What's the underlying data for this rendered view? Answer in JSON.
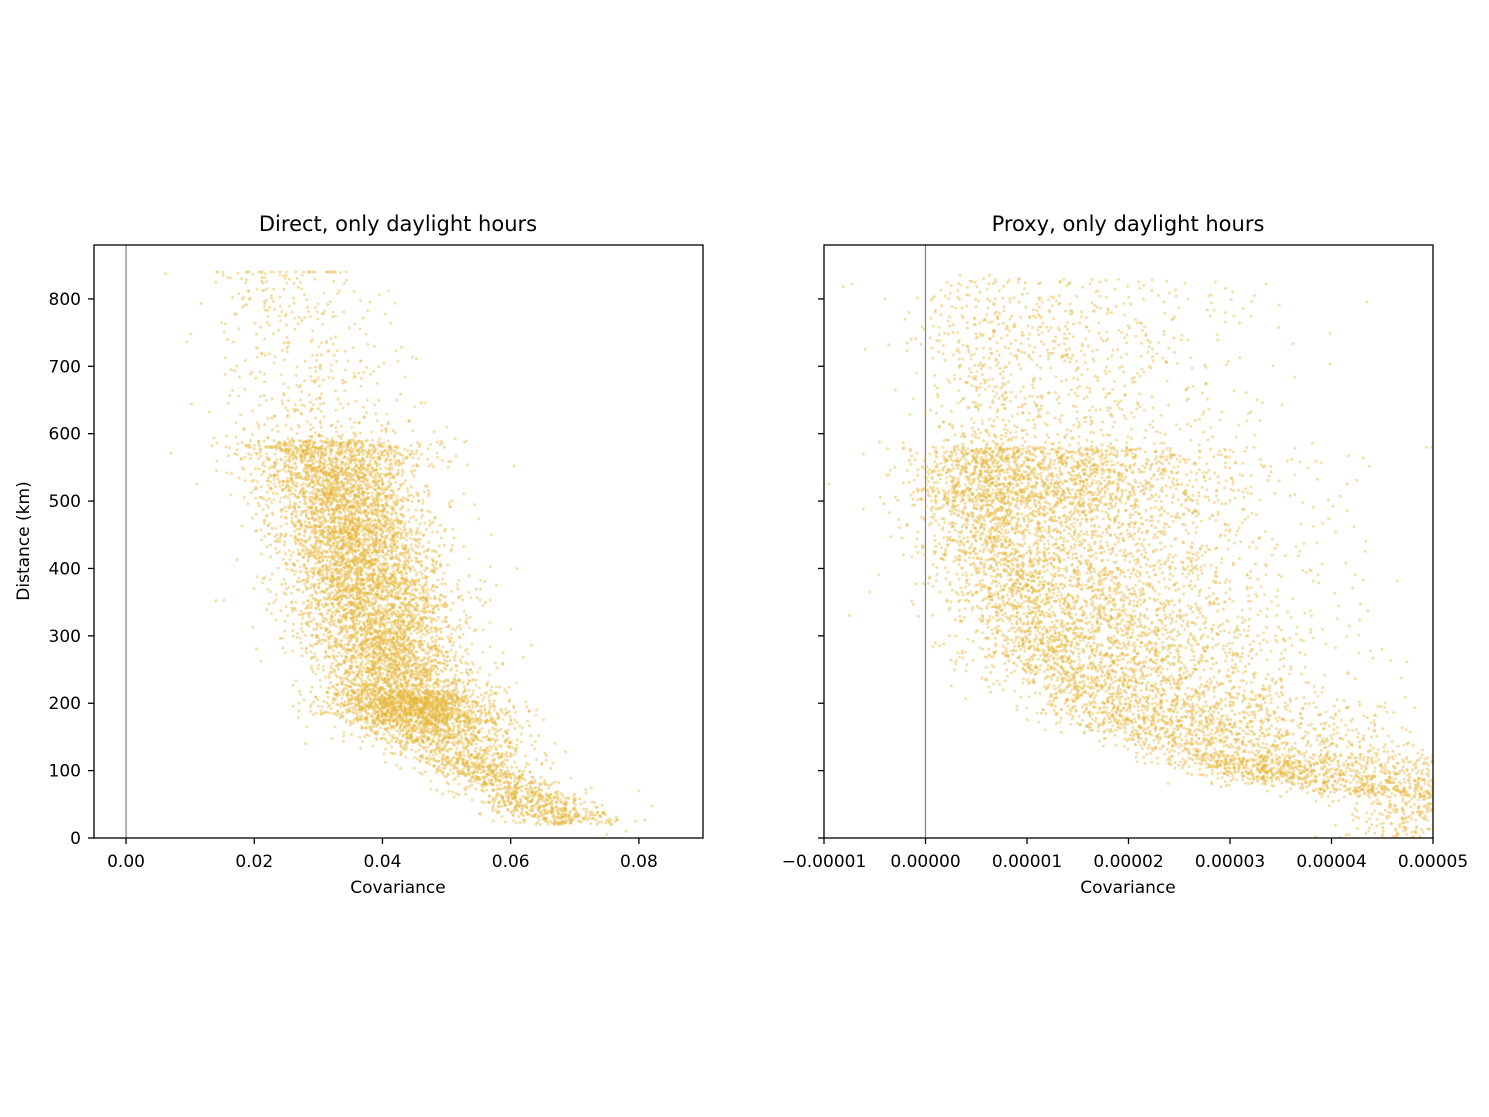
{
  "figure": {
    "background": "#ffffff"
  },
  "style": {
    "point_color": "#e6b83f",
    "point_alpha": 0.45,
    "zero_line_color": "#808080",
    "axis_color": "#000000"
  },
  "chart_data": [
    {
      "type": "scatter",
      "title": "Direct, only daylight hours",
      "xlabel": "Covariance",
      "ylabel": "Distance (km)",
      "xlim": [
        -0.005,
        0.09
      ],
      "ylim": [
        0,
        880
      ],
      "xticks": [
        0.0,
        0.02,
        0.04,
        0.06,
        0.08
      ],
      "xtick_labels": [
        "0.00",
        "0.02",
        "0.04",
        "0.06",
        "0.08"
      ],
      "yticks": [
        0,
        100,
        200,
        300,
        400,
        500,
        600,
        700,
        800
      ],
      "ytick_labels": [
        "0",
        "100",
        "200",
        "300",
        "400",
        "500",
        "600",
        "700",
        "800"
      ],
      "vline_x": 0.0,
      "grid": false,
      "point_count_estimate": 9000,
      "trend_points": [
        [
          0.026,
          800
        ],
        [
          0.028,
          700
        ],
        [
          0.031,
          600
        ],
        [
          0.034,
          500
        ],
        [
          0.037,
          400
        ],
        [
          0.04,
          300
        ],
        [
          0.044,
          200
        ],
        [
          0.052,
          120
        ],
        [
          0.06,
          75
        ],
        [
          0.066,
          40
        ],
        [
          0.071,
          10
        ]
      ],
      "sample_points": [
        [
          0.014,
          825
        ],
        [
          0.024,
          835
        ],
        [
          0.025,
          835
        ],
        [
          0.022,
          765
        ],
        [
          0.013,
          632
        ],
        [
          0.011,
          525
        ],
        [
          0.014,
          352
        ],
        [
          0.05,
          610
        ],
        [
          0.043,
          728
        ],
        [
          0.038,
          795
        ],
        [
          0.045,
          640
        ],
        [
          0.061,
          400
        ],
        [
          0.057,
          450
        ],
        [
          0.062,
          268
        ],
        [
          0.082,
          48
        ],
        [
          0.08,
          70
        ],
        [
          0.078,
          10
        ],
        [
          0.075,
          5
        ],
        [
          0.028,
          140
        ],
        [
          0.027,
          200
        ]
      ]
    },
    {
      "type": "scatter",
      "title": "Proxy, only daylight hours",
      "xlabel": "Covariance",
      "ylabel": "",
      "xlim": [
        -1e-05,
        5e-05
      ],
      "ylim": [
        0,
        880
      ],
      "xticks": [
        -1e-05,
        0.0,
        1e-05,
        2e-05,
        3e-05,
        4e-05,
        5e-05
      ],
      "xtick_labels": [
        "−0.00001",
        "0.00000",
        "0.00001",
        "0.00002",
        "0.00003",
        "0.00004",
        "0.00005"
      ],
      "yticks": [
        0,
        100,
        200,
        300,
        400,
        500,
        600,
        700,
        800
      ],
      "ytick_labels": [],
      "vline_x": 0.0,
      "grid": false,
      "point_count_estimate": 9000,
      "trend_points": [
        [
          8e-06,
          450
        ],
        [
          1.1e-05,
          350
        ],
        [
          1.5e-05,
          250
        ],
        [
          2.2e-05,
          170
        ],
        [
          3e-05,
          120
        ],
        [
          4e-05,
          80
        ],
        [
          5e-05,
          60
        ]
      ],
      "sample_points": [
        [
          -8.1e-06,
          818
        ],
        [
          -7.2e-06,
          822
        ],
        [
          -4e-06,
          800
        ],
        [
          3.4e-06,
          835
        ],
        [
          6.3e-06,
          835
        ],
        [
          2.35e-05,
          795
        ],
        [
          3.24e-05,
          805
        ],
        [
          4.35e-05,
          795
        ],
        [
          -7.5e-06,
          330
        ],
        [
          -5.5e-06,
          365
        ],
        [
          -9.5e-06,
          525
        ],
        [
          4.99e-05,
          580
        ]
      ]
    }
  ]
}
